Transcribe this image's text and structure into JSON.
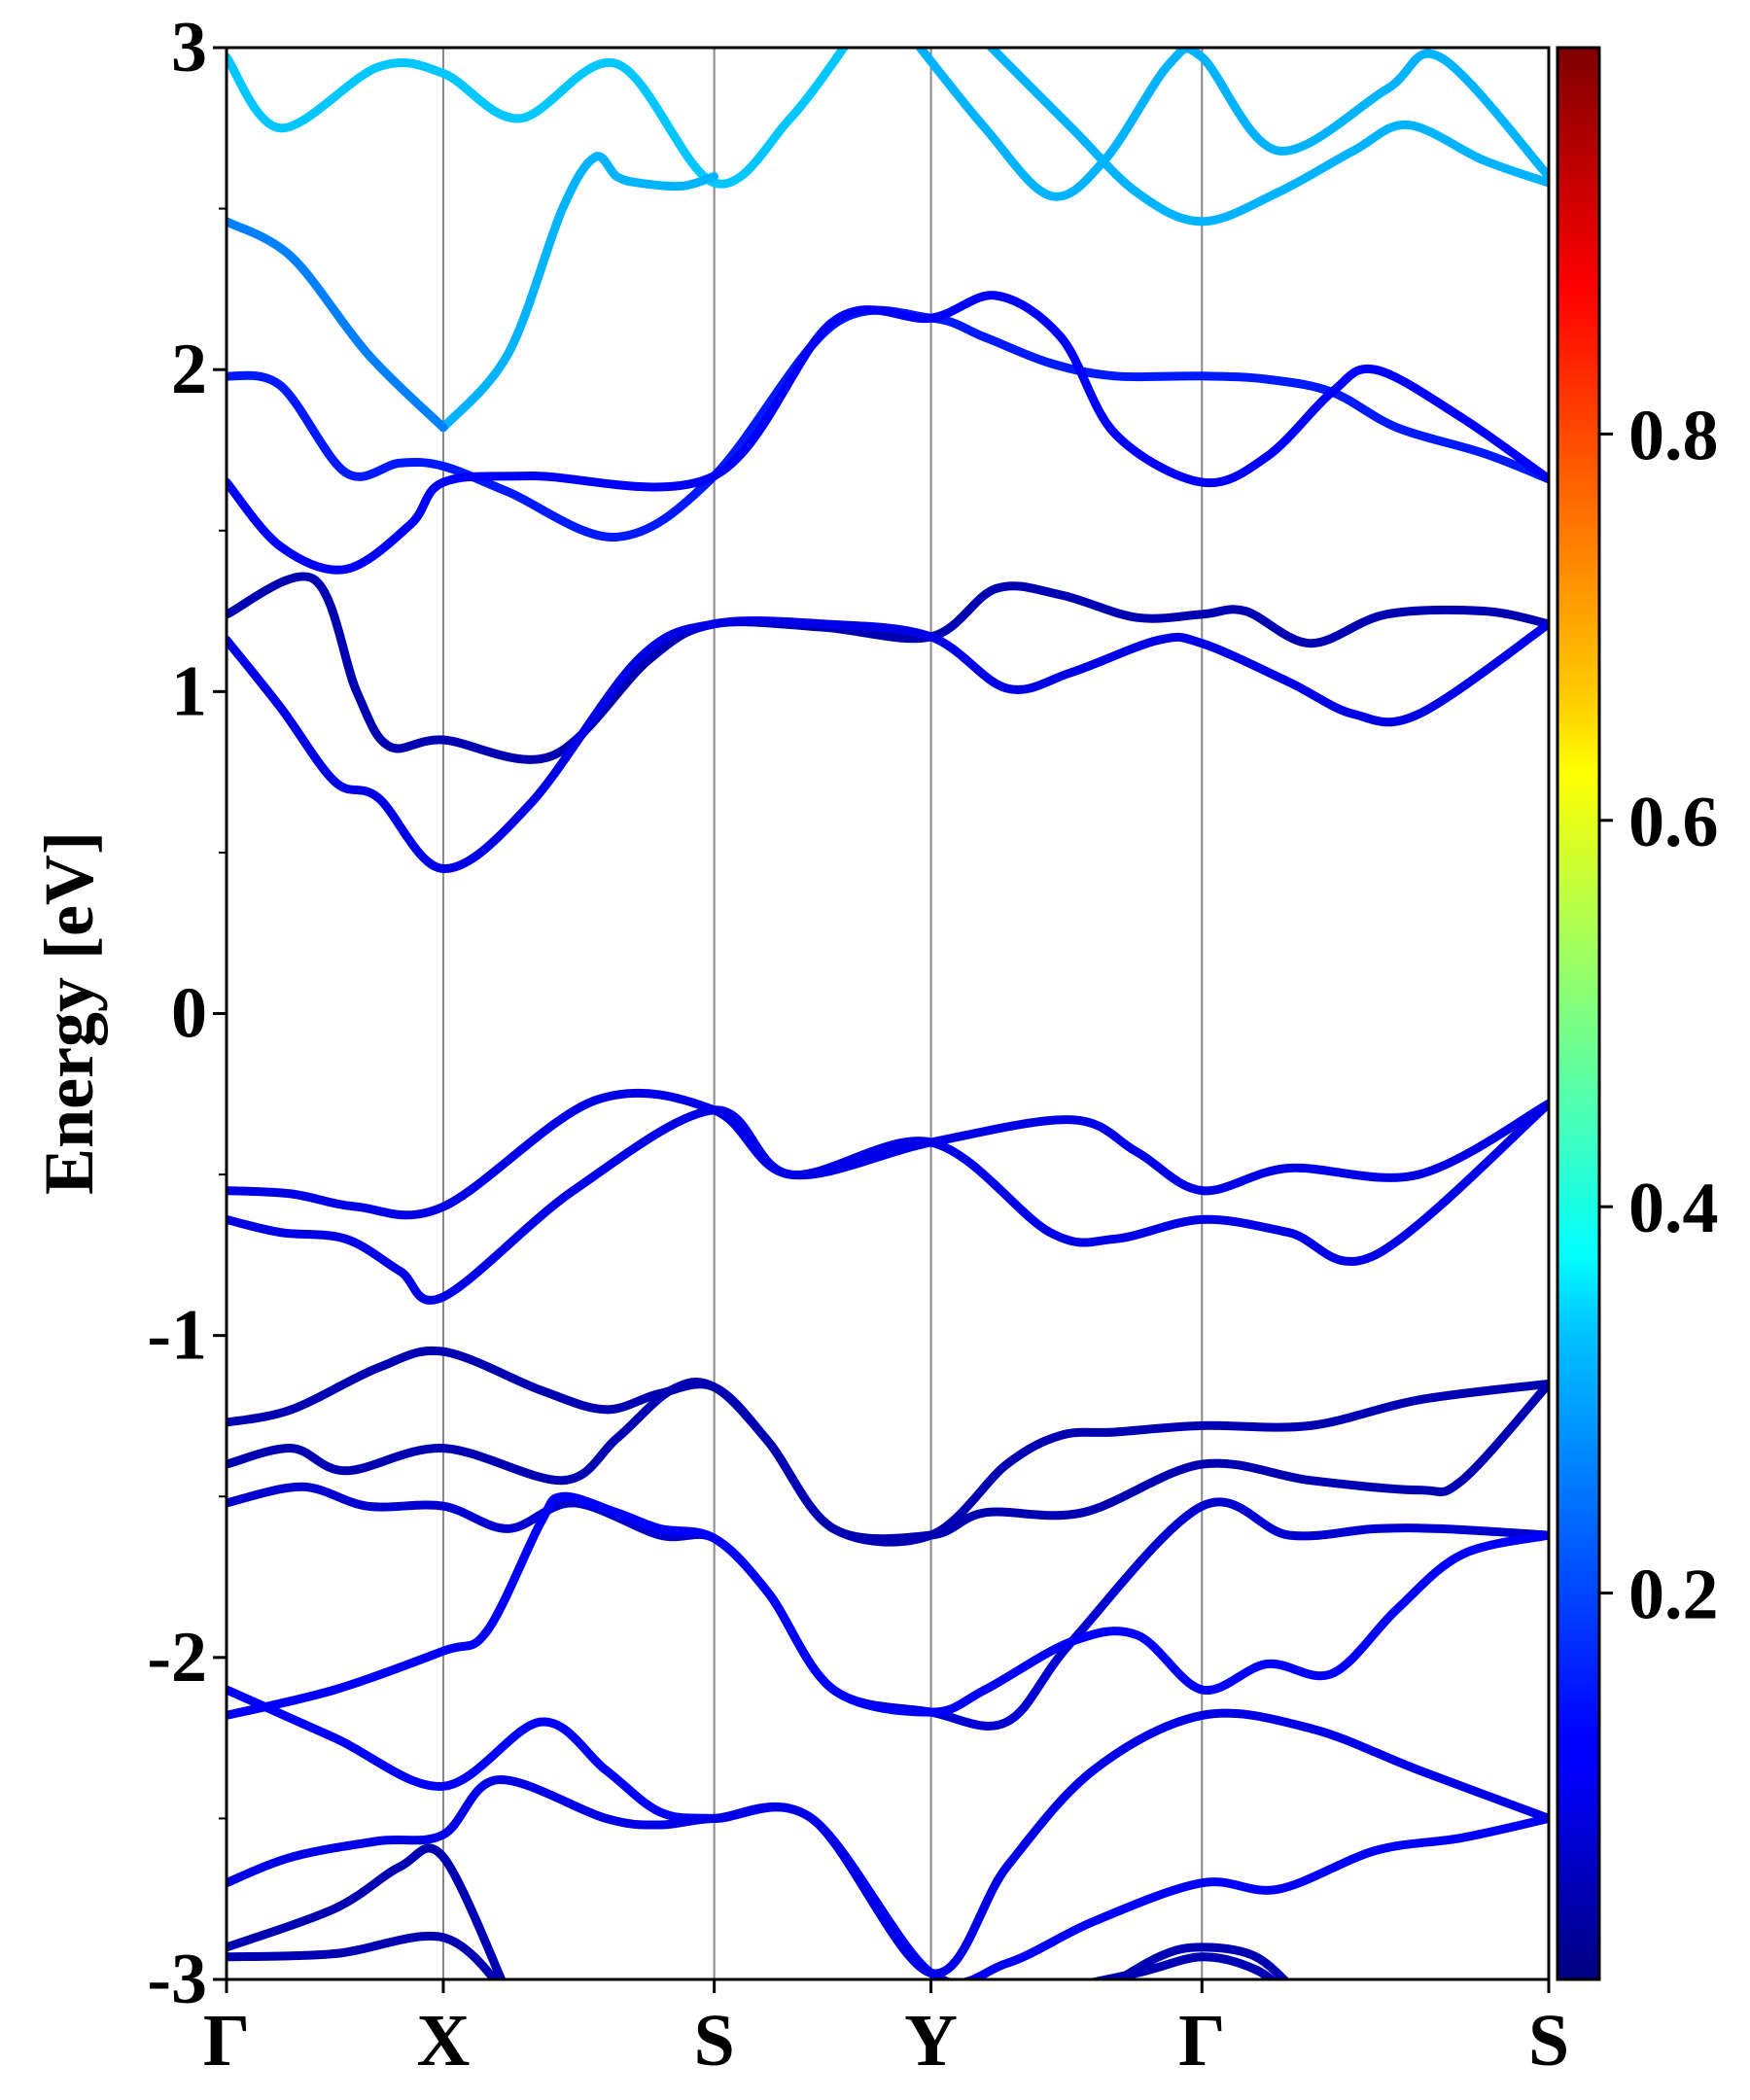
{
  "chart_data": {
    "type": "line",
    "title": "",
    "ylabel": "Energy [eV]",
    "xlabel": "",
    "ylim": [
      -3,
      3
    ],
    "yticks": [
      {
        "value": 3,
        "label": "3"
      },
      {
        "value": 2,
        "label": "2"
      },
      {
        "value": 1,
        "label": "1"
      },
      {
        "value": 0,
        "label": "0"
      },
      {
        "value": -1,
        "label": "-1"
      },
      {
        "value": -2,
        "label": "-2"
      },
      {
        "value": -3,
        "label": "-3"
      }
    ],
    "kpoints": [
      {
        "label": "Γ",
        "x": 0
      },
      {
        "label": "X",
        "x": 1
      },
      {
        "label": "S",
        "x": 2.25
      },
      {
        "label": "Y",
        "x": 3.25
      },
      {
        "label": "Γ",
        "x": 4.5
      },
      {
        "label": "S",
        "x": 6.1
      }
    ],
    "xlim": [
      0,
      6.1
    ],
    "colorbar": {
      "range": [
        0,
        1
      ],
      "ticks": [
        {
          "value": 0.2,
          "label": "0.2"
        },
        {
          "value": 0.4,
          "label": "0.4"
        },
        {
          "value": 0.6,
          "label": "0.6"
        },
        {
          "value": 0.8,
          "label": "0.8"
        }
      ],
      "colormap": "jet"
    },
    "grid": "vertical lines at k-points",
    "series": [
      {
        "weight": 0.32,
        "points": [
          [
            0,
            2.97
          ],
          [
            0.25,
            2.75
          ],
          [
            0.7,
            2.94
          ],
          [
            1,
            2.92
          ],
          [
            1.35,
            2.78
          ],
          [
            1.8,
            2.95
          ],
          [
            2.25,
            2.58
          ],
          [
            2.6,
            2.78
          ],
          [
            2.9,
            3.05
          ]
        ]
      },
      {
        "weight": 0.3,
        "points": [
          [
            2.25,
            2.6
          ],
          [
            2.1,
            2.57
          ],
          [
            1.9,
            2.58
          ],
          [
            1.8,
            2.6
          ],
          [
            1.7,
            2.66
          ],
          [
            1.55,
            2.5
          ],
          [
            1.3,
            2.05
          ],
          [
            1,
            1.82
          ]
        ]
      },
      {
        "weight": 0.25,
        "points": [
          [
            0,
            2.46
          ],
          [
            0.3,
            2.35
          ],
          [
            0.65,
            2.05
          ],
          [
            1,
            1.82
          ]
        ]
      },
      {
        "weight": 0.3,
        "points": [
          [
            3.2,
            3.0
          ],
          [
            3.5,
            2.75
          ],
          [
            3.8,
            2.54
          ],
          [
            4.05,
            2.65
          ],
          [
            4.35,
            2.95
          ],
          [
            4.5,
            2.97
          ],
          [
            4.85,
            2.68
          ],
          [
            5.35,
            2.87
          ],
          [
            5.6,
            2.97
          ],
          [
            6.1,
            2.6
          ]
        ]
      },
      {
        "weight": 0.3,
        "points": [
          [
            3.5,
            3.02
          ],
          [
            3.9,
            2.75
          ],
          [
            4.2,
            2.55
          ],
          [
            4.5,
            2.46
          ],
          [
            4.85,
            2.55
          ],
          [
            5.2,
            2.68
          ],
          [
            5.45,
            2.76
          ],
          [
            5.8,
            2.65
          ],
          [
            6.1,
            2.58
          ]
        ]
      },
      {
        "weight": 0.15,
        "points": [
          [
            0,
            1.98
          ],
          [
            0.25,
            1.95
          ],
          [
            0.55,
            1.68
          ],
          [
            0.8,
            1.71
          ],
          [
            1,
            1.7
          ],
          [
            1.3,
            1.62
          ],
          [
            1.8,
            1.48
          ],
          [
            2.25,
            1.67
          ],
          [
            2.8,
            2.14
          ],
          [
            3.25,
            2.16
          ],
          [
            3.5,
            2.1
          ],
          [
            3.8,
            2.02
          ],
          [
            4.1,
            1.98
          ],
          [
            4.5,
            1.98
          ],
          [
            4.8,
            1.97
          ],
          [
            5.1,
            1.93
          ],
          [
            5.4,
            1.82
          ],
          [
            5.8,
            1.74
          ],
          [
            6.1,
            1.66
          ]
        ]
      },
      {
        "weight": 0.12,
        "points": [
          [
            0,
            1.65
          ],
          [
            0.25,
            1.45
          ],
          [
            0.55,
            1.38
          ],
          [
            0.85,
            1.52
          ],
          [
            1,
            1.65
          ],
          [
            1.4,
            1.67
          ],
          [
            2.25,
            1.67
          ],
          [
            2.8,
            2.15
          ],
          [
            3.25,
            2.16
          ],
          [
            3.55,
            2.23
          ],
          [
            3.85,
            2.1
          ],
          [
            4.1,
            1.8
          ],
          [
            4.5,
            1.65
          ],
          [
            4.8,
            1.73
          ],
          [
            5.1,
            1.93
          ],
          [
            5.3,
            2.0
          ],
          [
            5.7,
            1.85
          ],
          [
            6.1,
            1.66
          ]
        ]
      },
      {
        "weight": 0.05,
        "points": [
          [
            0,
            1.24
          ],
          [
            0.4,
            1.35
          ],
          [
            0.6,
            1.0
          ],
          [
            0.75,
            0.83
          ],
          [
            1,
            0.85
          ],
          [
            1.5,
            0.8
          ],
          [
            1.95,
            1.1
          ],
          [
            2.25,
            1.21
          ],
          [
            2.75,
            1.2
          ],
          [
            3.25,
            1.17
          ],
          [
            3.55,
            1.32
          ],
          [
            3.85,
            1.3
          ],
          [
            4.2,
            1.23
          ],
          [
            4.5,
            1.24
          ],
          [
            4.7,
            1.25
          ],
          [
            5.0,
            1.15
          ],
          [
            5.35,
            1.24
          ],
          [
            5.8,
            1.25
          ],
          [
            6.1,
            1.21
          ]
        ]
      },
      {
        "weight": 0.1,
        "points": [
          [
            0,
            1.16
          ],
          [
            0.25,
            0.95
          ],
          [
            0.5,
            0.72
          ],
          [
            0.7,
            0.67
          ],
          [
            1,
            0.45
          ],
          [
            1.4,
            0.65
          ],
          [
            1.9,
            1.1
          ],
          [
            2.25,
            1.21
          ],
          [
            2.75,
            1.21
          ],
          [
            3.25,
            1.17
          ],
          [
            3.6,
            1.01
          ],
          [
            3.9,
            1.06
          ],
          [
            4.3,
            1.16
          ],
          [
            4.5,
            1.15
          ],
          [
            4.9,
            1.03
          ],
          [
            5.2,
            0.93
          ],
          [
            5.5,
            0.93
          ],
          [
            6.1,
            1.21
          ]
        ]
      },
      {
        "weight": 0.1,
        "points": [
          [
            0,
            -0.55
          ],
          [
            0.3,
            -0.56
          ],
          [
            0.6,
            -0.6
          ],
          [
            1,
            -0.6
          ],
          [
            1.7,
            -0.27
          ],
          [
            2.25,
            -0.3
          ],
          [
            2.6,
            -0.5
          ],
          [
            3.25,
            -0.4
          ],
          [
            3.9,
            -0.33
          ],
          [
            4.2,
            -0.43
          ],
          [
            4.5,
            -0.55
          ],
          [
            4.9,
            -0.48
          ],
          [
            5.5,
            -0.5
          ],
          [
            6.1,
            -0.28
          ]
        ]
      },
      {
        "weight": 0.1,
        "points": [
          [
            0,
            -0.64
          ],
          [
            0.25,
            -0.68
          ],
          [
            0.55,
            -0.7
          ],
          [
            0.8,
            -0.8
          ],
          [
            1,
            -0.88
          ],
          [
            1.6,
            -0.55
          ],
          [
            2.25,
            -0.3
          ],
          [
            2.6,
            -0.5
          ],
          [
            3.25,
            -0.4
          ],
          [
            3.8,
            -0.68
          ],
          [
            4.1,
            -0.7
          ],
          [
            4.5,
            -0.64
          ],
          [
            4.9,
            -0.68
          ],
          [
            5.3,
            -0.75
          ],
          [
            6.1,
            -0.28
          ]
        ]
      },
      {
        "weight": 0.05,
        "points": [
          [
            0,
            -1.27
          ],
          [
            0.3,
            -1.23
          ],
          [
            0.7,
            -1.1
          ],
          [
            1,
            -1.05
          ],
          [
            1.45,
            -1.17
          ],
          [
            1.75,
            -1.23
          ],
          [
            2.0,
            -1.18
          ],
          [
            2.25,
            -1.16
          ],
          [
            2.5,
            -1.33
          ],
          [
            2.8,
            -1.6
          ],
          [
            3.25,
            -1.62
          ],
          [
            3.6,
            -1.4
          ],
          [
            3.85,
            -1.31
          ],
          [
            4.1,
            -1.3
          ],
          [
            4.5,
            -1.28
          ],
          [
            5.0,
            -1.28
          ],
          [
            5.5,
            -1.2
          ],
          [
            6.1,
            -1.15
          ]
        ]
      },
      {
        "weight": 0.05,
        "points": [
          [
            0,
            -1.4
          ],
          [
            0.3,
            -1.35
          ],
          [
            0.55,
            -1.42
          ],
          [
            1,
            -1.35
          ],
          [
            1.55,
            -1.45
          ],
          [
            1.8,
            -1.32
          ],
          [
            2.05,
            -1.17
          ],
          [
            2.25,
            -1.16
          ],
          [
            2.5,
            -1.33
          ],
          [
            2.8,
            -1.6
          ],
          [
            3.25,
            -1.62
          ],
          [
            3.5,
            -1.55
          ],
          [
            3.95,
            -1.55
          ],
          [
            4.5,
            -1.4
          ],
          [
            5.0,
            -1.45
          ],
          [
            5.5,
            -1.48
          ],
          [
            5.7,
            -1.45
          ],
          [
            6.1,
            -1.15
          ]
        ]
      },
      {
        "weight": 0.08,
        "points": [
          [
            0,
            -1.52
          ],
          [
            0.35,
            -1.47
          ],
          [
            0.65,
            -1.53
          ],
          [
            1,
            -1.53
          ],
          [
            1.3,
            -1.6
          ],
          [
            1.6,
            -1.52
          ],
          [
            2.0,
            -1.62
          ],
          [
            2.25,
            -1.63
          ],
          [
            2.5,
            -1.8
          ],
          [
            2.8,
            -2.1
          ],
          [
            3.25,
            -2.17
          ],
          [
            3.6,
            -2.2
          ],
          [
            3.9,
            -1.95
          ],
          [
            4.5,
            -1.53
          ],
          [
            4.9,
            -1.62
          ],
          [
            5.3,
            -1.6
          ],
          [
            5.6,
            -1.6
          ],
          [
            6.1,
            -1.62
          ]
        ]
      },
      {
        "weight": 0.12,
        "points": [
          [
            0,
            -2.18
          ],
          [
            0.5,
            -2.1
          ],
          [
            1,
            -1.98
          ],
          [
            1.2,
            -1.92
          ],
          [
            1.45,
            -1.58
          ],
          [
            1.55,
            -1.5
          ],
          [
            1.8,
            -1.55
          ],
          [
            2.0,
            -1.6
          ],
          [
            2.25,
            -1.63
          ],
          [
            2.5,
            -1.8
          ],
          [
            2.8,
            -2.1
          ],
          [
            3.25,
            -2.17
          ],
          [
            3.5,
            -2.1
          ],
          [
            3.9,
            -1.95
          ],
          [
            4.2,
            -1.93
          ],
          [
            4.5,
            -2.1
          ],
          [
            4.8,
            -2.02
          ],
          [
            5.1,
            -2.05
          ],
          [
            5.4,
            -1.85
          ],
          [
            5.7,
            -1.68
          ],
          [
            6.1,
            -1.62
          ]
        ]
      },
      {
        "weight": 0.12,
        "points": [
          [
            0,
            -2.1
          ],
          [
            0.5,
            -2.25
          ],
          [
            1,
            -2.4
          ],
          [
            1.45,
            -2.2
          ],
          [
            1.75,
            -2.35
          ],
          [
            2.0,
            -2.48
          ],
          [
            2.25,
            -2.5
          ],
          [
            2.7,
            -2.5
          ],
          [
            3.25,
            -2.98
          ],
          [
            3.6,
            -2.95
          ],
          [
            4.0,
            -2.82
          ],
          [
            4.5,
            -2.7
          ],
          [
            4.85,
            -2.72
          ],
          [
            5.3,
            -2.6
          ],
          [
            5.7,
            -2.56
          ],
          [
            6.1,
            -2.5
          ]
        ]
      },
      {
        "weight": 0.1,
        "points": [
          [
            0,
            -2.7
          ],
          [
            0.3,
            -2.62
          ],
          [
            0.7,
            -2.57
          ],
          [
            1,
            -2.55
          ],
          [
            1.25,
            -2.38
          ],
          [
            1.75,
            -2.5
          ],
          [
            2.0,
            -2.52
          ],
          [
            2.25,
            -2.5
          ],
          [
            2.7,
            -2.5
          ],
          [
            3.25,
            -2.98
          ],
          [
            3.6,
            -2.65
          ],
          [
            4.0,
            -2.35
          ],
          [
            4.5,
            -2.18
          ],
          [
            5.0,
            -2.22
          ],
          [
            5.5,
            -2.35
          ],
          [
            6.1,
            -2.5
          ]
        ]
      },
      {
        "weight": 0.05,
        "points": [
          [
            0,
            -2.9
          ],
          [
            0.5,
            -2.78
          ],
          [
            0.8,
            -2.65
          ],
          [
            1,
            -2.62
          ],
          [
            1.3,
            -3.05
          ]
        ]
      },
      {
        "weight": 0.05,
        "points": [
          [
            0,
            -2.93
          ],
          [
            0.5,
            -2.92
          ],
          [
            1,
            -2.87
          ],
          [
            1.3,
            -3.05
          ]
        ]
      },
      {
        "weight": 0.05,
        "points": [
          [
            3.7,
            -3.05
          ],
          [
            4.2,
            -2.98
          ],
          [
            4.5,
            -2.93
          ],
          [
            4.75,
            -2.97
          ],
          [
            4.9,
            -3.05
          ]
        ]
      },
      {
        "weight": 0.05,
        "points": [
          [
            4.0,
            -3.05
          ],
          [
            4.3,
            -2.93
          ],
          [
            4.5,
            -2.9
          ],
          [
            4.75,
            -2.93
          ],
          [
            4.95,
            -3.05
          ]
        ]
      }
    ]
  }
}
